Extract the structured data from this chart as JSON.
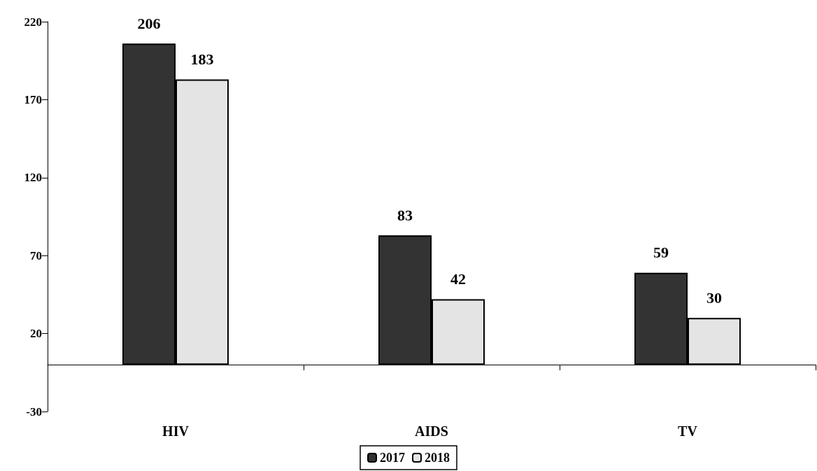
{
  "chart_data": {
    "type": "bar",
    "categories": [
      "HIV",
      "AIDS",
      "TV"
    ],
    "series": [
      {
        "name": "2017",
        "color": "#333333",
        "values": [
          206,
          83,
          59
        ]
      },
      {
        "name": "2018",
        "color": "#e4e4e4",
        "values": [
          183,
          42,
          30
        ]
      }
    ],
    "ylim": [
      -30,
      220
    ],
    "yticks": [
      -30,
      20,
      70,
      120,
      170,
      220
    ],
    "grid": false,
    "legend": "bottom",
    "data_labels": true
  }
}
